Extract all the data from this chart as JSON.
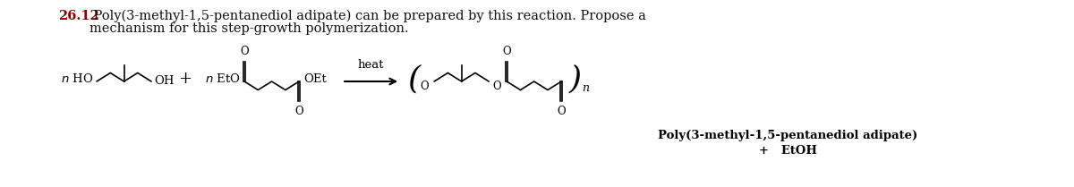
{
  "title_number": "26.12",
  "title_number_color": "#8B0000",
  "title_text_line1": " Poly(3-methyl-1,5-pentanediol adipate) can be prepared by this reaction. Propose a",
  "title_text_line2": "mechanism for this step-growth polymerization.",
  "title_fontsize": 10.5,
  "bg_color": "#ffffff",
  "bottom_label_line1": "Poly(3-methyl-1,5-pentanediol adipate)",
  "bottom_label_line2": "+   EtOH",
  "heat_label": "heat"
}
